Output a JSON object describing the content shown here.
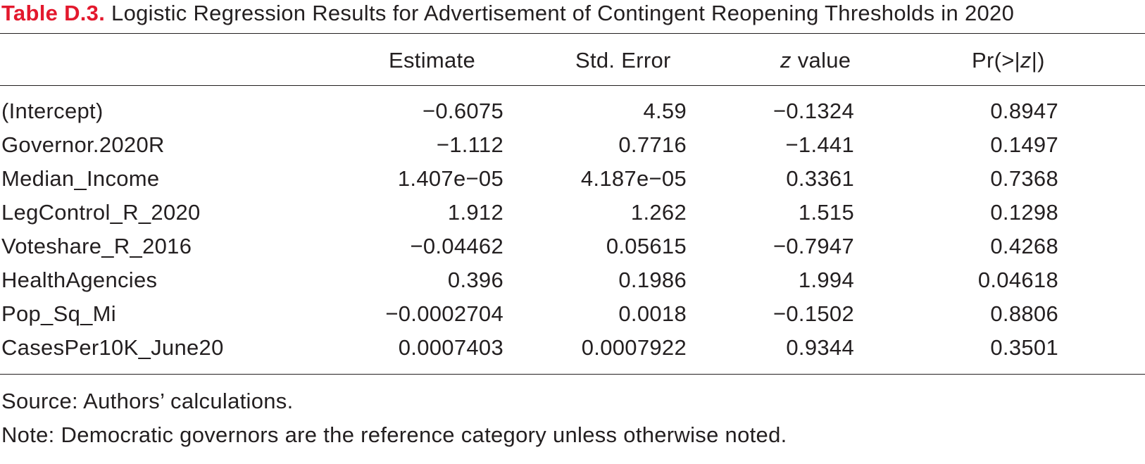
{
  "table": {
    "label": "Table D.3.",
    "title": " Logistic Regression Results for Advertisement of Contingent Reopening Thresholds in 2020",
    "headers": {
      "estimate": "Estimate",
      "std_error": "Std. Error",
      "z_value_italic": "z",
      "z_value_rest": " value",
      "pr_prefix": "Pr(>|",
      "pr_italic": "z",
      "pr_suffix": "|)"
    },
    "rows": [
      {
        "name": "(Intercept)",
        "estimate": "−0.6075",
        "std_error": "4.59",
        "z": "−0.1324",
        "p": "0.8947"
      },
      {
        "name": "Governor.2020R",
        "estimate": "−1.112",
        "std_error": "0.7716",
        "z": "−1.441",
        "p": "0.1497"
      },
      {
        "name": "Median_Income",
        "estimate": "1.407e−05",
        "std_error": "4.187e−05",
        "z": "0.3361",
        "p": "0.7368"
      },
      {
        "name": "LegControl_R_2020",
        "estimate": "1.912",
        "std_error": "1.262",
        "z": "1.515",
        "p": "0.1298"
      },
      {
        "name": "Voteshare_R_2016",
        "estimate": "−0.04462",
        "std_error": "0.05615",
        "z": "−0.7947",
        "p": "0.4268"
      },
      {
        "name": "HealthAgencies",
        "estimate": "0.396",
        "std_error": "0.1986",
        "z": "1.994",
        "p": "0.04618"
      },
      {
        "name": "Pop_Sq_Mi",
        "estimate": "−0.0002704",
        "std_error": "0.0018",
        "z": "−0.1502",
        "p": "0.8806"
      },
      {
        "name": "CasesPer10K_June20",
        "estimate": "0.0007403",
        "std_error": "0.0007922",
        "z": "0.9344",
        "p": "0.3501"
      }
    ],
    "source": "Source: Authors’ calculations.",
    "note": "Note: Democratic governors are the reference category unless otherwise noted."
  }
}
